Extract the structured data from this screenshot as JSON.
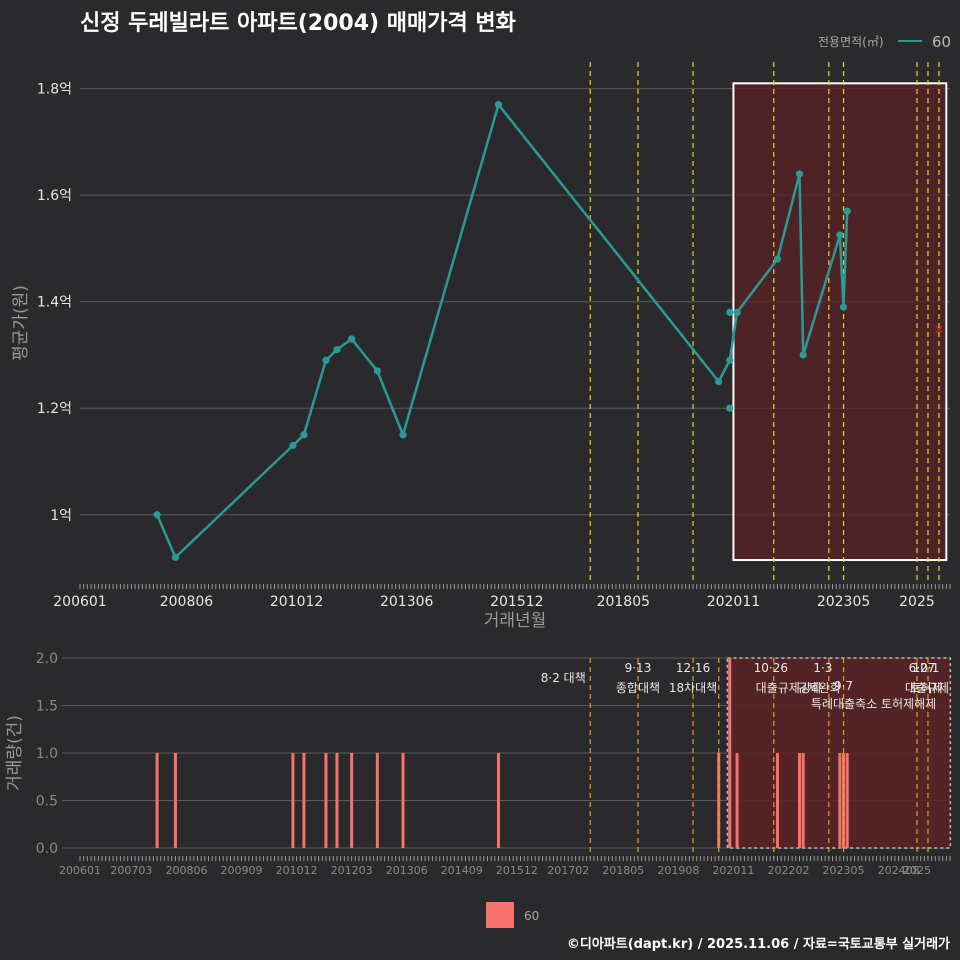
{
  "title": "신정 두레빌라트 아파트(2004) 매매가격 변화",
  "footer": "©디아파트(dapt.kr) / 2025.11.06 / 자료=국토교통부 실거래가",
  "legend_top": {
    "title": "전용면적(㎡)",
    "label": "60"
  },
  "legend_bottom": {
    "label": "60"
  },
  "colors": {
    "line": "#2a9a96",
    "bar": "#f7726d",
    "highlight": "#5a2224",
    "vline": "#e8d62a",
    "vline_bottom": "#e0a020"
  },
  "chart_data": [
    {
      "type": "line",
      "title": "신정 두레빌라트 아파트(2004) 매매가격 변화",
      "xlabel": "거래년월",
      "ylabel": "평균가(원)",
      "y_unit": "억",
      "ylim": [
        0.87,
        1.85
      ],
      "xlim": [
        200601,
        202510
      ],
      "x_ticks": [
        "200601",
        "200806",
        "201012",
        "201306",
        "201512",
        "201805",
        "202011",
        "202305",
        "2025"
      ],
      "y_ticks": [
        {
          "value": 1.0,
          "label": "1억"
        },
        {
          "value": 1.2,
          "label": "1.2억"
        },
        {
          "value": 1.4,
          "label": "1.4억"
        },
        {
          "value": 1.6,
          "label": "1.6억"
        },
        {
          "value": 1.8,
          "label": "1.8억"
        }
      ],
      "series": [
        {
          "name": "60",
          "points": [
            {
              "x": "200710",
              "y": 1.0
            },
            {
              "x": "200803",
              "y": 0.92
            },
            {
              "x": "201011",
              "y": 1.13
            },
            {
              "x": "201102",
              "y": 1.15
            },
            {
              "x": "201108",
              "y": 1.29
            },
            {
              "x": "201111",
              "y": 1.31
            },
            {
              "x": "201203",
              "y": 1.33
            },
            {
              "x": "201210",
              "y": 1.27
            },
            {
              "x": "201305",
              "y": 1.15
            },
            {
              "x": "201507",
              "y": 1.77
            },
            {
              "x": "202007",
              "y": 1.25
            },
            {
              "x": "202010",
              "y": 1.29
            },
            {
              "x": "202012",
              "y": 1.38
            },
            {
              "x": "202111",
              "y": 1.48
            },
            {
              "x": "202205",
              "y": 1.64
            },
            {
              "x": "202206",
              "y": 1.3
            },
            {
              "x": "202304",
              "y": 1.525
            },
            {
              "x": "202305",
              "y": 1.39
            },
            {
              "x": "202306",
              "y": 1.57
            }
          ],
          "extra_points": [
            {
              "x": "202010",
              "y": 1.38
            },
            {
              "x": "202010",
              "y": 1.2
            }
          ]
        }
      ],
      "marker": {
        "x": "202507",
        "y": 1.35,
        "symbol": "×"
      },
      "highlight_range": [
        "202011",
        "202509"
      ],
      "vlines": [
        "201708",
        "201809",
        "201912",
        "202110",
        "202301",
        "202305",
        "202501",
        "202504",
        "202507"
      ]
    },
    {
      "type": "bar",
      "ylabel": "거래량(건)",
      "ylim": [
        0,
        2
      ],
      "y_ticks": [
        "0.0",
        "0.5",
        "1.0",
        "1.5",
        "2.0"
      ],
      "x_ticks": [
        "200601",
        "200703",
        "200806",
        "200909",
        "201012",
        "201203",
        "201306",
        "201409",
        "201512",
        "201702",
        "201805",
        "201908",
        "202011",
        "202202",
        "202305",
        "202408",
        "2025"
      ],
      "series": [
        {
          "name": "60",
          "bars": [
            {
              "x": "200710",
              "value": 1
            },
            {
              "x": "200803",
              "value": 1
            },
            {
              "x": "201011",
              "value": 1
            },
            {
              "x": "201102",
              "value": 1
            },
            {
              "x": "201108",
              "value": 1
            },
            {
              "x": "201111",
              "value": 1
            },
            {
              "x": "201203",
              "value": 1
            },
            {
              "x": "201210",
              "value": 1
            },
            {
              "x": "201305",
              "value": 1
            },
            {
              "x": "201507",
              "value": 1
            },
            {
              "x": "202007",
              "value": 1
            },
            {
              "x": "202010",
              "value": 2
            },
            {
              "x": "202012",
              "value": 1
            },
            {
              "x": "202111",
              "value": 1
            },
            {
              "x": "202205",
              "value": 1
            },
            {
              "x": "202206",
              "value": 1
            },
            {
              "x": "202304",
              "value": 1
            },
            {
              "x": "202305",
              "value": 1
            },
            {
              "x": "202306",
              "value": 1
            }
          ]
        }
      ],
      "highlight_range": [
        "202011",
        "202509"
      ],
      "policy_lines": [
        {
          "x": "201708",
          "date": "8·2",
          "label": "8·2 대책"
        },
        {
          "x": "201809",
          "date": "9·13",
          "label": "종합대책"
        },
        {
          "x": "201912",
          "date": "12·16",
          "label": "18차대책"
        },
        {
          "x": "202007",
          "date": "",
          "label": ""
        },
        {
          "x": "202110",
          "date": "10·26",
          "label": "대출규제강화"
        },
        {
          "x": "202301",
          "date": "1·3",
          "label": "규제완화"
        },
        {
          "x": "202305",
          "date": "9·7",
          "label": "특례대출축소 토허제해제"
        },
        {
          "x": "202501",
          "date": "6·27",
          "label": "대출규제"
        },
        {
          "x": "202504",
          "date": "10·1",
          "label": "토허제"
        }
      ]
    }
  ]
}
